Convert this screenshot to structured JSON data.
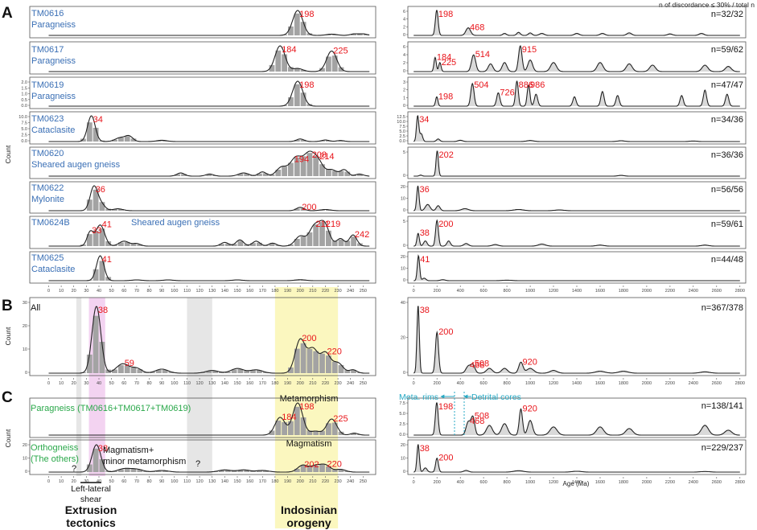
{
  "header_note": "n of discordance ≤ 30% / total n",
  "section_labels": [
    "A",
    "B",
    "C"
  ],
  "y_axis_label": "Count",
  "x_axis_label": "Age (Ma)",
  "colors": {
    "sample_blue": "#3a6fb5",
    "peak_red": "#e8141a",
    "group_green": "#2aa84a",
    "bar_gray": "#a3a3a3",
    "yellow_band": "#fbf7bf",
    "pink_band": "#f3d3f1",
    "gray_band": "#e6e6e6",
    "cyan": "#27a9c4"
  },
  "chart_data": {
    "type": "histogram_kde",
    "left_x": {
      "range": [
        0,
        260
      ],
      "ticks": [
        0,
        10,
        20,
        30,
        40,
        50,
        60,
        70,
        80,
        90,
        100,
        110,
        120,
        130,
        140,
        150,
        160,
        170,
        180,
        190,
        200,
        210,
        220,
        230,
        240,
        250
      ]
    },
    "right_x": {
      "range": [
        0,
        2800
      ],
      "ticks": [
        0,
        200,
        400,
        600,
        800,
        1000,
        1200,
        1400,
        1600,
        1800,
        2000,
        2200,
        2400,
        2600,
        2800
      ]
    },
    "panels": [
      {
        "id": "TM0616",
        "name": "TM0616",
        "rock": "Paragneiss",
        "n": "n=32/32",
        "left_peaks": [
          {
            "label": "198",
            "age": 198
          }
        ],
        "right_peaks": [
          {
            "label": "198",
            "age": 198
          },
          {
            "label": "468",
            "age": 468
          }
        ],
        "left_yticks": [],
        "right_yticks": [
          "0",
          "2",
          "4",
          "6"
        ]
      },
      {
        "id": "TM0617",
        "name": "TM0617",
        "rock": "Paragneiss",
        "n": "n=59/62",
        "left_peaks": [
          {
            "label": "184",
            "age": 184
          },
          {
            "label": "225",
            "age": 225
          }
        ],
        "right_peaks": [
          {
            "label": "184",
            "age": 184
          },
          {
            "label": "225",
            "age": 225
          },
          {
            "label": "514",
            "age": 514
          },
          {
            "label": "915",
            "age": 915
          }
        ],
        "left_yticks": [],
        "right_yticks": [
          "0",
          "2",
          "4",
          "6"
        ]
      },
      {
        "id": "TM0619",
        "name": "TM0619",
        "rock": "Paragneiss",
        "n": "n=47/47",
        "left_peaks": [
          {
            "label": "198",
            "age": 198
          }
        ],
        "right_peaks": [
          {
            "label": "198",
            "age": 198
          },
          {
            "label": "504",
            "age": 504
          },
          {
            "label": "726",
            "age": 726
          },
          {
            "label": "886",
            "age": 886
          },
          {
            "label": "986",
            "age": 986
          }
        ],
        "left_yticks": [
          "0.0",
          "0.5",
          "1.0",
          "1.5",
          "2.0"
        ],
        "right_yticks": [
          "0",
          "1",
          "2",
          "3"
        ]
      },
      {
        "id": "TM0623",
        "name": "TM0623",
        "rock": "Cataclasite",
        "n": "n=34/36",
        "left_peaks": [
          {
            "label": "34",
            "age": 34
          }
        ],
        "right_peaks": [
          {
            "label": "34",
            "age": 34
          }
        ],
        "left_yticks": [
          "0.0",
          "2.5",
          "5.0",
          "7.5",
          "10.0"
        ],
        "right_yticks": [
          "0.0",
          "2.5",
          "5.0",
          "7.5",
          "10.0",
          "12.5"
        ]
      },
      {
        "id": "TM0620",
        "name": "TM0620",
        "rock": "Sheared augen gneiss",
        "n": "n=36/36",
        "left_peaks": [
          {
            "label": "194",
            "age": 194
          },
          {
            "label": "208",
            "age": 208
          },
          {
            "label": "214",
            "age": 214
          }
        ],
        "right_peaks": [
          {
            "label": "202",
            "age": 202
          }
        ],
        "left_yticks": [],
        "right_yticks": [
          "0",
          "5"
        ]
      },
      {
        "id": "TM0622",
        "name": "TM0622",
        "rock": "Mylonite",
        "n": "n=56/56",
        "left_peaks": [
          {
            "label": "36",
            "age": 36
          },
          {
            "label": "200",
            "age": 200
          }
        ],
        "right_peaks": [
          {
            "label": "36",
            "age": 36
          }
        ],
        "left_yticks": [],
        "right_yticks": [
          "0",
          "10",
          "20"
        ]
      },
      {
        "id": "TM0624B",
        "name": "TM0624B",
        "rock": "Sheared augen gneiss",
        "n": "n=59/61",
        "left_peaks": [
          {
            "label": "33",
            "age": 33
          },
          {
            "label": "41",
            "age": 41
          },
          {
            "label": "211",
            "age": 211
          },
          {
            "label": "219",
            "age": 219
          },
          {
            "label": "242",
            "age": 242
          }
        ],
        "right_peaks": [
          {
            "label": "38",
            "age": 38
          },
          {
            "label": "200",
            "age": 200
          }
        ],
        "left_yticks": [],
        "right_yticks": [
          "0",
          "5"
        ]
      },
      {
        "id": "TM0625",
        "name": "TM0625",
        "rock": "Cataclasite",
        "n": "n=44/48",
        "left_peaks": [
          {
            "label": "41",
            "age": 41
          }
        ],
        "right_peaks": [
          {
            "label": "41",
            "age": 41
          }
        ],
        "left_yticks": [],
        "right_yticks": [
          "0",
          "10",
          "20"
        ]
      }
    ],
    "all": {
      "title": "All",
      "n": "n=367/378",
      "left_peaks": [
        {
          "label": "38",
          "age": 38
        },
        {
          "label": "59",
          "age": 59
        },
        {
          "label": "200",
          "age": 200
        },
        {
          "label": "220",
          "age": 220
        }
      ],
      "right_peaks": [
        {
          "label": "38",
          "age": 38
        },
        {
          "label": "200",
          "age": 200
        },
        {
          "label": "468",
          "age": 468
        },
        {
          "label": "508",
          "age": 508
        },
        {
          "label": "920",
          "age": 920
        }
      ],
      "left_yticks": [
        "0",
        "10",
        "20",
        "30"
      ],
      "right_yticks": [
        "0",
        "20",
        "40"
      ]
    },
    "groups": [
      {
        "id": "para",
        "title": "Paragneiss (TM0616+TM0617+TM0619)",
        "n": "n=138/141",
        "left_peaks": [
          {
            "label": "184",
            "age": 184
          },
          {
            "label": "198",
            "age": 198
          },
          {
            "label": "225",
            "age": 225
          }
        ],
        "right_peaks": [
          {
            "label": "198",
            "age": 198
          },
          {
            "label": "468",
            "age": 468
          },
          {
            "label": "508",
            "age": 508
          },
          {
            "label": "920",
            "age": 920
          }
        ],
        "left_yticks": [],
        "right_yticks": [
          "0.0",
          "2.5",
          "5.0",
          "7.5"
        ]
      },
      {
        "id": "ortho",
        "title": "Orthogneiss",
        "subtitle": "(The others)",
        "n": "n=229/237",
        "left_peaks": [
          {
            "label": "38",
            "age": 38
          },
          {
            "label": "202",
            "age": 202
          },
          {
            "label": "220",
            "age": 220
          }
        ],
        "right_peaks": [
          {
            "label": "38",
            "age": 38
          },
          {
            "label": "200",
            "age": 200
          }
        ],
        "left_yticks": [
          "0",
          "10",
          "20"
        ],
        "right_yticks": [
          "0",
          "10",
          "20"
        ]
      }
    ],
    "annotations": {
      "metamorphism": "Metamorphism",
      "magmatism": "Magmatism",
      "magmatism_minor_1": "Magmatism+",
      "magmatism_minor_2": "minor metamorphism",
      "question": "?",
      "shear_1": "Left-lateral",
      "shear_2": "shear",
      "extrusion_1": "Extrusion",
      "extrusion_2": "tectonics",
      "indosinian_1": "Indosinian",
      "indosinian_2": "orogeny",
      "meta_rims": "Meta. rims",
      "detrital_cores": "Detrital cores"
    }
  }
}
